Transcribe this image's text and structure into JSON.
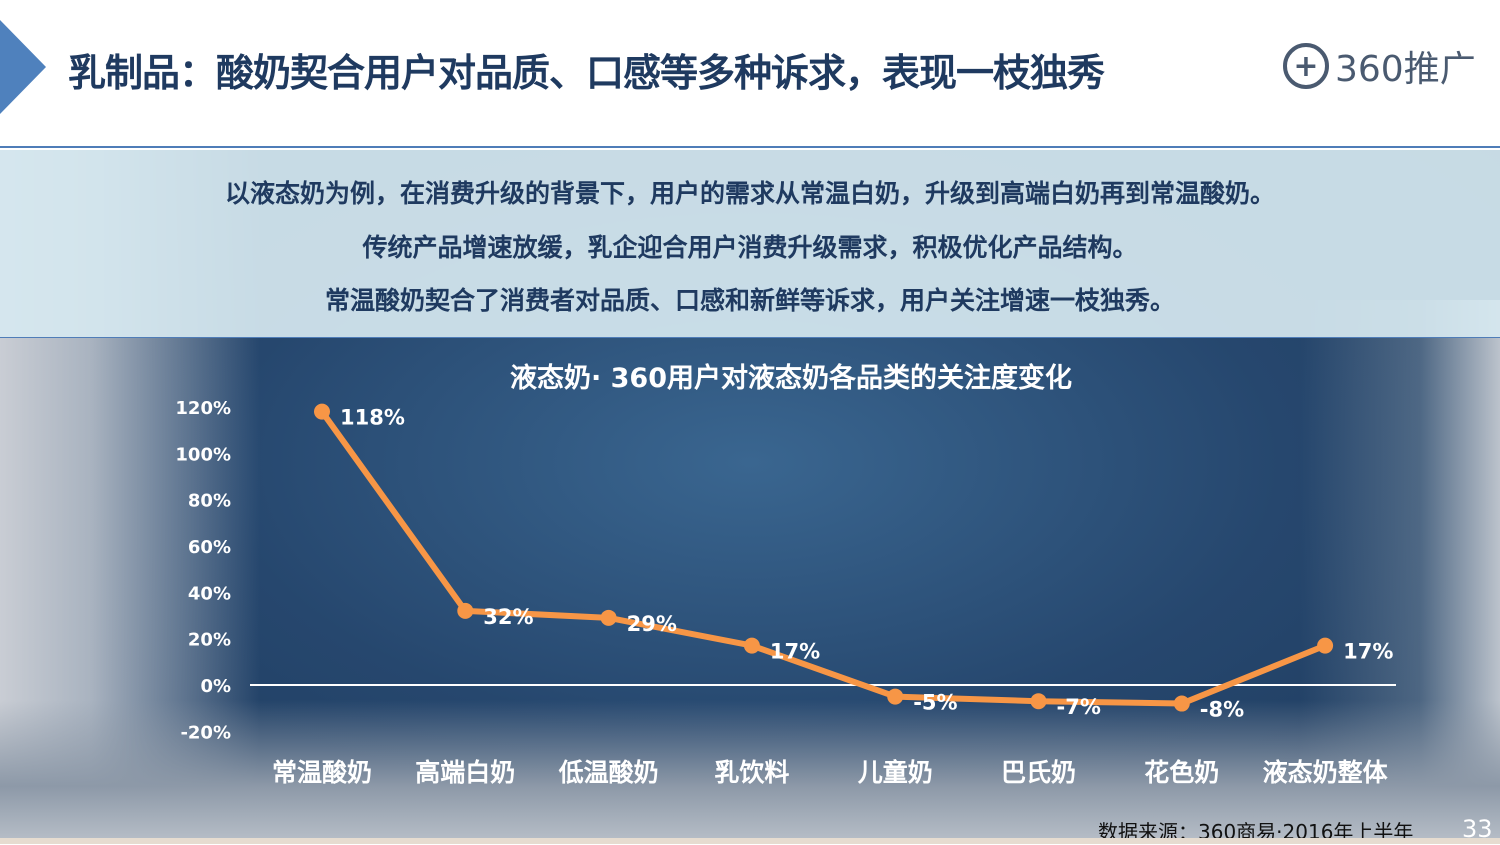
{
  "header": {
    "title": "乳制品：酸奶契合用户对品质、口感等多种诉求，表现一枝独秀",
    "logo_text": "360推广",
    "logo_icon": "plus-circle-icon"
  },
  "summary": {
    "lines": [
      "以液态奶为例，在消费升级的背景下，用户的需求从常温白奶，升级到高端白奶再到常温酸奶。",
      "传统产品增速放缓，乳企迎合用户消费升级需求，积极优化产品结构。",
      "常温酸奶契合了消费者对品质、口感和新鲜等诉求，用户关注增速一枝独秀。"
    ]
  },
  "chart_data": {
    "type": "line",
    "title": "液态奶· 360用户对液态奶各品类的关注度变化",
    "categories": [
      "常温酸奶",
      "高端白奶",
      "低温酸奶",
      "乳饮料",
      "儿童奶",
      "巴氏奶",
      "花色奶",
      "液态奶整体"
    ],
    "values": [
      118,
      32,
      29,
      17,
      -5,
      -7,
      -8,
      17
    ],
    "data_labels": [
      "118%",
      "32%",
      "29%",
      "17%",
      "-5%",
      "-7%",
      "-8%",
      "17%"
    ],
    "y_ticks": [
      "120%",
      "100%",
      "80%",
      "60%",
      "40%",
      "20%",
      "0%",
      "-20%"
    ],
    "y_tick_values": [
      120,
      100,
      80,
      60,
      40,
      20,
      0,
      -20
    ],
    "ylim": [
      -20,
      120
    ],
    "grid": false,
    "line_color": "#f79646",
    "text_color": "#ffffff"
  },
  "footer": {
    "source": "数据来源：360商易·2016年上半年",
    "page_number": "33"
  }
}
